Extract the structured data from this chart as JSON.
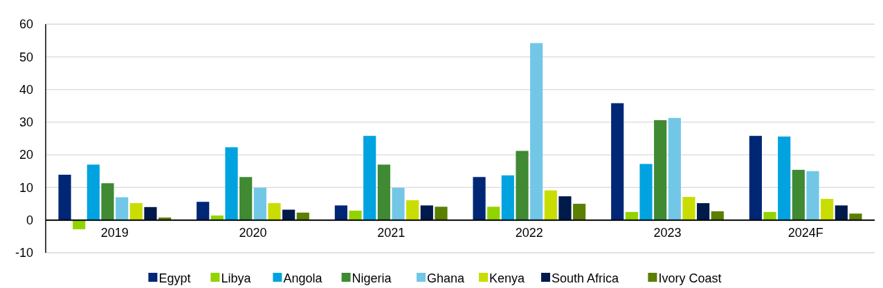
{
  "chart_data": {
    "type": "bar",
    "categories": [
      "2019",
      "2020",
      "2021",
      "2022",
      "2023",
      "2024F"
    ],
    "series": [
      {
        "name": "Egypt",
        "color": "#002776",
        "values": [
          13.9,
          5.6,
          4.5,
          13.2,
          35.8,
          25.8
        ]
      },
      {
        "name": "Libya",
        "color": "#92d400",
        "values": [
          -2.8,
          1.4,
          2.9,
          4.1,
          2.5,
          2.5
        ]
      },
      {
        "name": "Angola",
        "color": "#00a3e0",
        "values": [
          17.0,
          22.3,
          25.8,
          13.7,
          17.2,
          25.6
        ]
      },
      {
        "name": "Nigeria",
        "color": "#3f8a33",
        "values": [
          11.3,
          13.2,
          17.0,
          21.2,
          30.6,
          15.4
        ]
      },
      {
        "name": "Ghana",
        "color": "#72c7e7",
        "values": [
          7.0,
          9.9,
          9.9,
          54.2,
          31.3,
          15.0
        ]
      },
      {
        "name": "Kenya",
        "color": "#c9dd03",
        "values": [
          5.2,
          5.2,
          6.1,
          9.1,
          7.1,
          6.5
        ]
      },
      {
        "name": "South Africa",
        "color": "#001a4b",
        "values": [
          4.0,
          3.2,
          4.5,
          7.3,
          5.2,
          4.5
        ]
      },
      {
        "name": "Ivory Coast",
        "color": "#5b7f00",
        "values": [
          0.8,
          2.3,
          4.1,
          5.0,
          2.7,
          2.0
        ]
      }
    ],
    "ylim": [
      -10,
      60
    ],
    "yticks": [
      -10,
      0,
      10,
      20,
      30,
      40,
      50,
      60
    ],
    "grid": "y",
    "legend": "bottom"
  }
}
